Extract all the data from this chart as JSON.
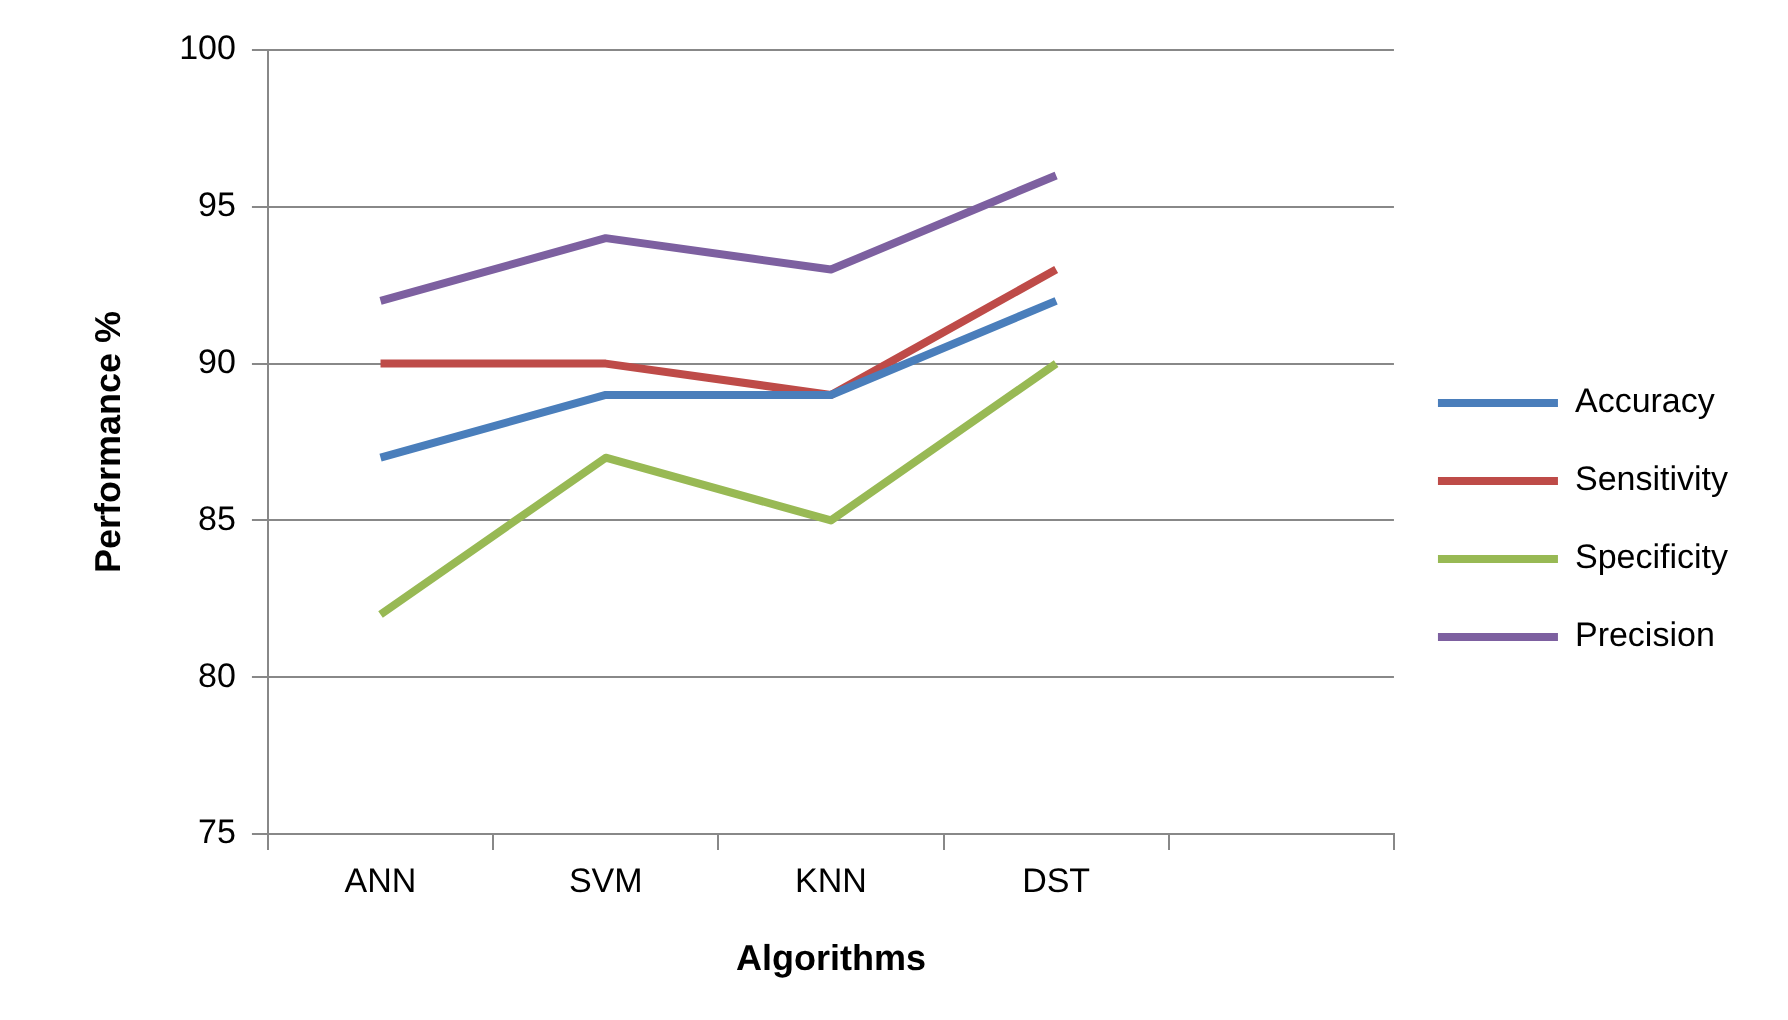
{
  "chart_data": {
    "type": "line",
    "xlabel": "Algorithms",
    "ylabel": "Performance %",
    "categories": [
      "ANN",
      "SVM",
      "KNN",
      "DST",
      null
    ],
    "series": [
      {
        "name": "Accuracy",
        "color": "#4a7ebb",
        "values": [
          87,
          89,
          89,
          92,
          null
        ]
      },
      {
        "name": "Sensitivity",
        "color": "#be4b48",
        "values": [
          90,
          90,
          89,
          93,
          null
        ]
      },
      {
        "name": "Specificity",
        "color": "#98b954",
        "values": [
          82,
          87,
          85,
          90,
          null
        ]
      },
      {
        "name": "Precision",
        "color": "#7d60a0",
        "values": [
          92,
          94,
          93,
          96,
          null
        ]
      }
    ],
    "ylim": [
      75,
      100
    ],
    "yticks": [
      75,
      80,
      85,
      90,
      95,
      100
    ],
    "grid": "y",
    "legend": "right",
    "marker": "none",
    "line_style": "solid"
  }
}
